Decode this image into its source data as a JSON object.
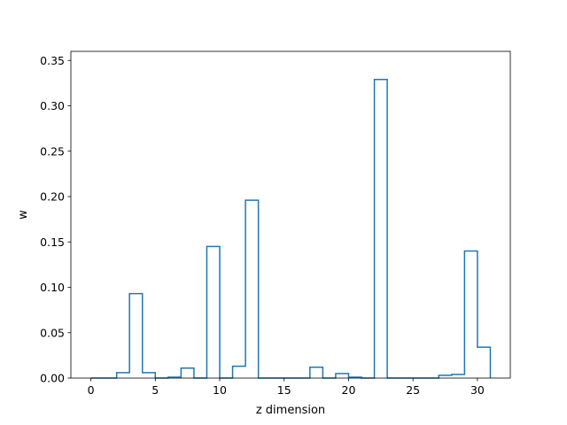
{
  "chart_data": {
    "type": "bar",
    "style": "step-outline",
    "title": "",
    "xlabel": "z dimension",
    "ylabel": "w",
    "xlim": [
      -1.55,
      32.55
    ],
    "ylim": [
      0,
      0.36
    ],
    "x_ticks": [
      0,
      5,
      10,
      15,
      20,
      25,
      30
    ],
    "x_tick_labels": [
      "0",
      "5",
      "10",
      "15",
      "20",
      "25",
      "30"
    ],
    "y_ticks": [
      0.0,
      0.05,
      0.1,
      0.15,
      0.2,
      0.25,
      0.3,
      0.35
    ],
    "y_tick_labels": [
      "0.00",
      "0.05",
      "0.10",
      "0.15",
      "0.20",
      "0.25",
      "0.30",
      "0.35"
    ],
    "grid": false,
    "color": "#1f77b4",
    "x": [
      0,
      1,
      2,
      3,
      4,
      5,
      6,
      7,
      8,
      9,
      10,
      11,
      12,
      13,
      14,
      15,
      16,
      17,
      18,
      19,
      20,
      21,
      22,
      23,
      24,
      25,
      26,
      27,
      28,
      29,
      30
    ],
    "values": [
      0.0,
      0.0,
      0.006,
      0.093,
      0.006,
      0.0,
      0.001,
      0.011,
      0.0,
      0.145,
      0.0,
      0.013,
      0.196,
      0.0,
      0.0,
      0.0,
      0.0,
      0.012,
      0.0,
      0.005,
      0.001,
      0.0,
      0.329,
      0.0,
      0.0,
      0.0,
      0.0,
      0.003,
      0.004,
      0.14,
      0.034
    ]
  }
}
